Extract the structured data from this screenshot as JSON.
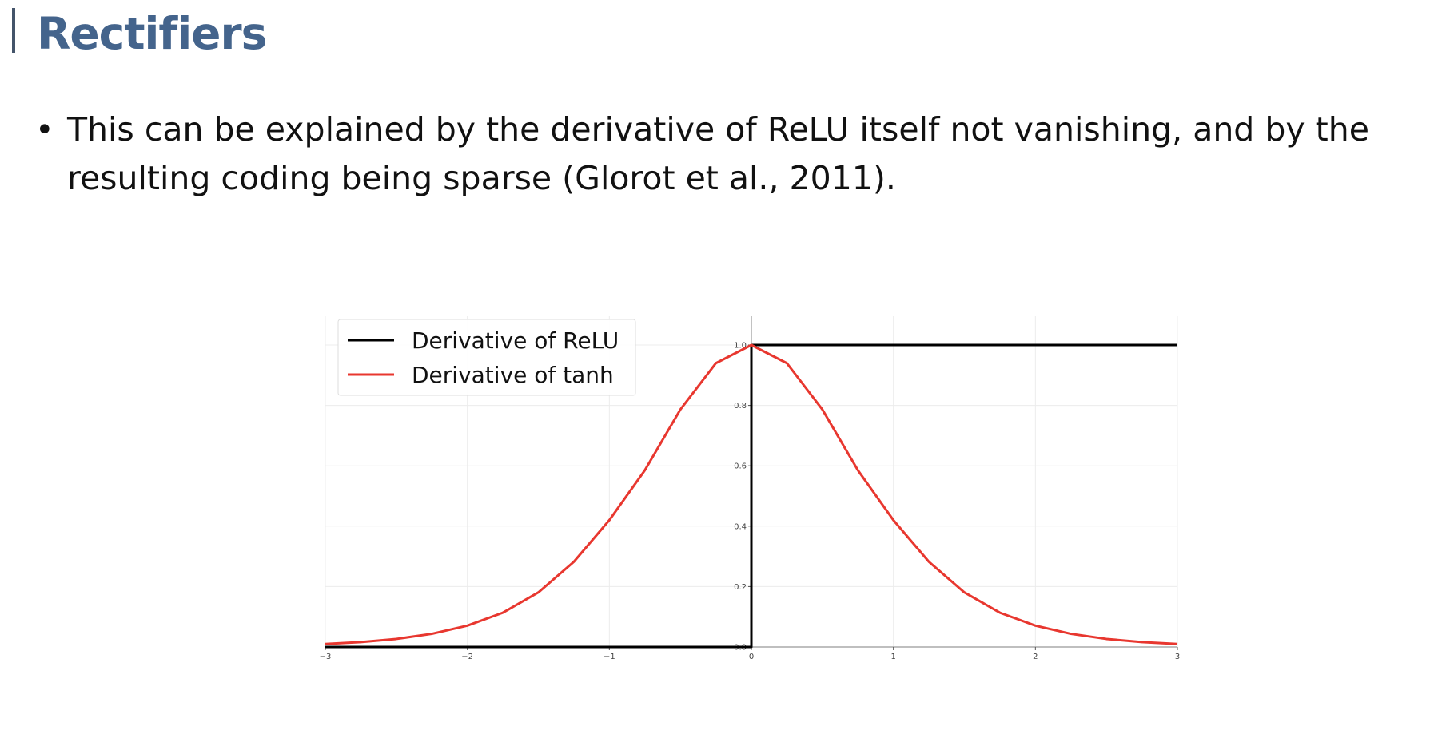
{
  "slide": {
    "title": "Rectifiers",
    "bullet": "This can be explained by the derivative of ReLU itself not vanishing, and by the resulting coding being sparse (Glorot et al., 2011)."
  },
  "chart_data": {
    "type": "line",
    "xlim": [
      -3,
      3
    ],
    "ylim": [
      0,
      1
    ],
    "x_ticks": [
      "-3",
      "-2",
      "-1",
      "0",
      "1",
      "2",
      "3"
    ],
    "y_ticks": [
      "0.0",
      "0.2",
      "0.4",
      "0.6",
      "0.8",
      "1.0"
    ],
    "grid": true,
    "legend_position": "top-left",
    "series": [
      {
        "name": "Derivative of ReLU",
        "color": "#000000",
        "x": [
          -3,
          0,
          0,
          3
        ],
        "y": [
          0,
          0,
          1,
          1
        ]
      },
      {
        "name": "Derivative of tanh",
        "color": "#e8372f",
        "x": [
          -3,
          -2.75,
          -2.5,
          -2.25,
          -2,
          -1.75,
          -1.5,
          -1.25,
          -1,
          -0.75,
          -0.5,
          -0.25,
          0,
          0.25,
          0.5,
          0.75,
          1,
          1.25,
          1.5,
          1.75,
          2,
          2.25,
          2.5,
          2.75,
          3
        ],
        "y": [
          0.0099,
          0.0163,
          0.0266,
          0.0435,
          0.0707,
          0.1135,
          0.1807,
          0.2821,
          0.42,
          0.5854,
          0.7864,
          0.9398,
          1,
          0.9398,
          0.7864,
          0.5854,
          0.42,
          0.2821,
          0.1807,
          0.1135,
          0.0707,
          0.0435,
          0.0266,
          0.0163,
          0.0099
        ]
      }
    ]
  }
}
